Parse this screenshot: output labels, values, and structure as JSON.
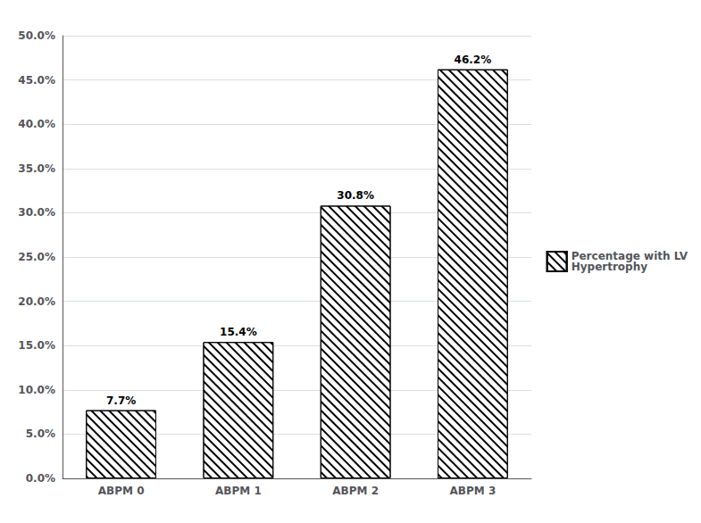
{
  "chart_data": {
    "type": "bar",
    "categories": [
      "ABPM 0",
      "ABPM 1",
      "ABPM 2",
      "ABPM 3"
    ],
    "series": [
      {
        "name": "Percentage with LV\nHypertrophy",
        "color": "#000000",
        "values": [
          7.7,
          15.4,
          30.8,
          46.2
        ],
        "value_labels": [
          "7.7%",
          "15.4%",
          "30.8%",
          "46.2%"
        ]
      }
    ],
    "ylim": [
      0,
      50
    ],
    "yticks": [
      {
        "value": 0,
        "label": "0.0%"
      },
      {
        "value": 5,
        "label": "5.0%"
      },
      {
        "value": 10,
        "label": "10.0%"
      },
      {
        "value": 15,
        "label": "15.0%"
      },
      {
        "value": 20,
        "label": "20.0%"
      },
      {
        "value": 25,
        "label": "25.0%"
      },
      {
        "value": 30,
        "label": "30.0%"
      },
      {
        "value": 35,
        "label": "35.0%"
      },
      {
        "value": 40,
        "label": "40.0%"
      },
      {
        "value": 45,
        "label": "45.0%"
      },
      {
        "value": 50,
        "label": "50.0%"
      }
    ],
    "grid": true,
    "legend": "right",
    "data_labels": true
  }
}
